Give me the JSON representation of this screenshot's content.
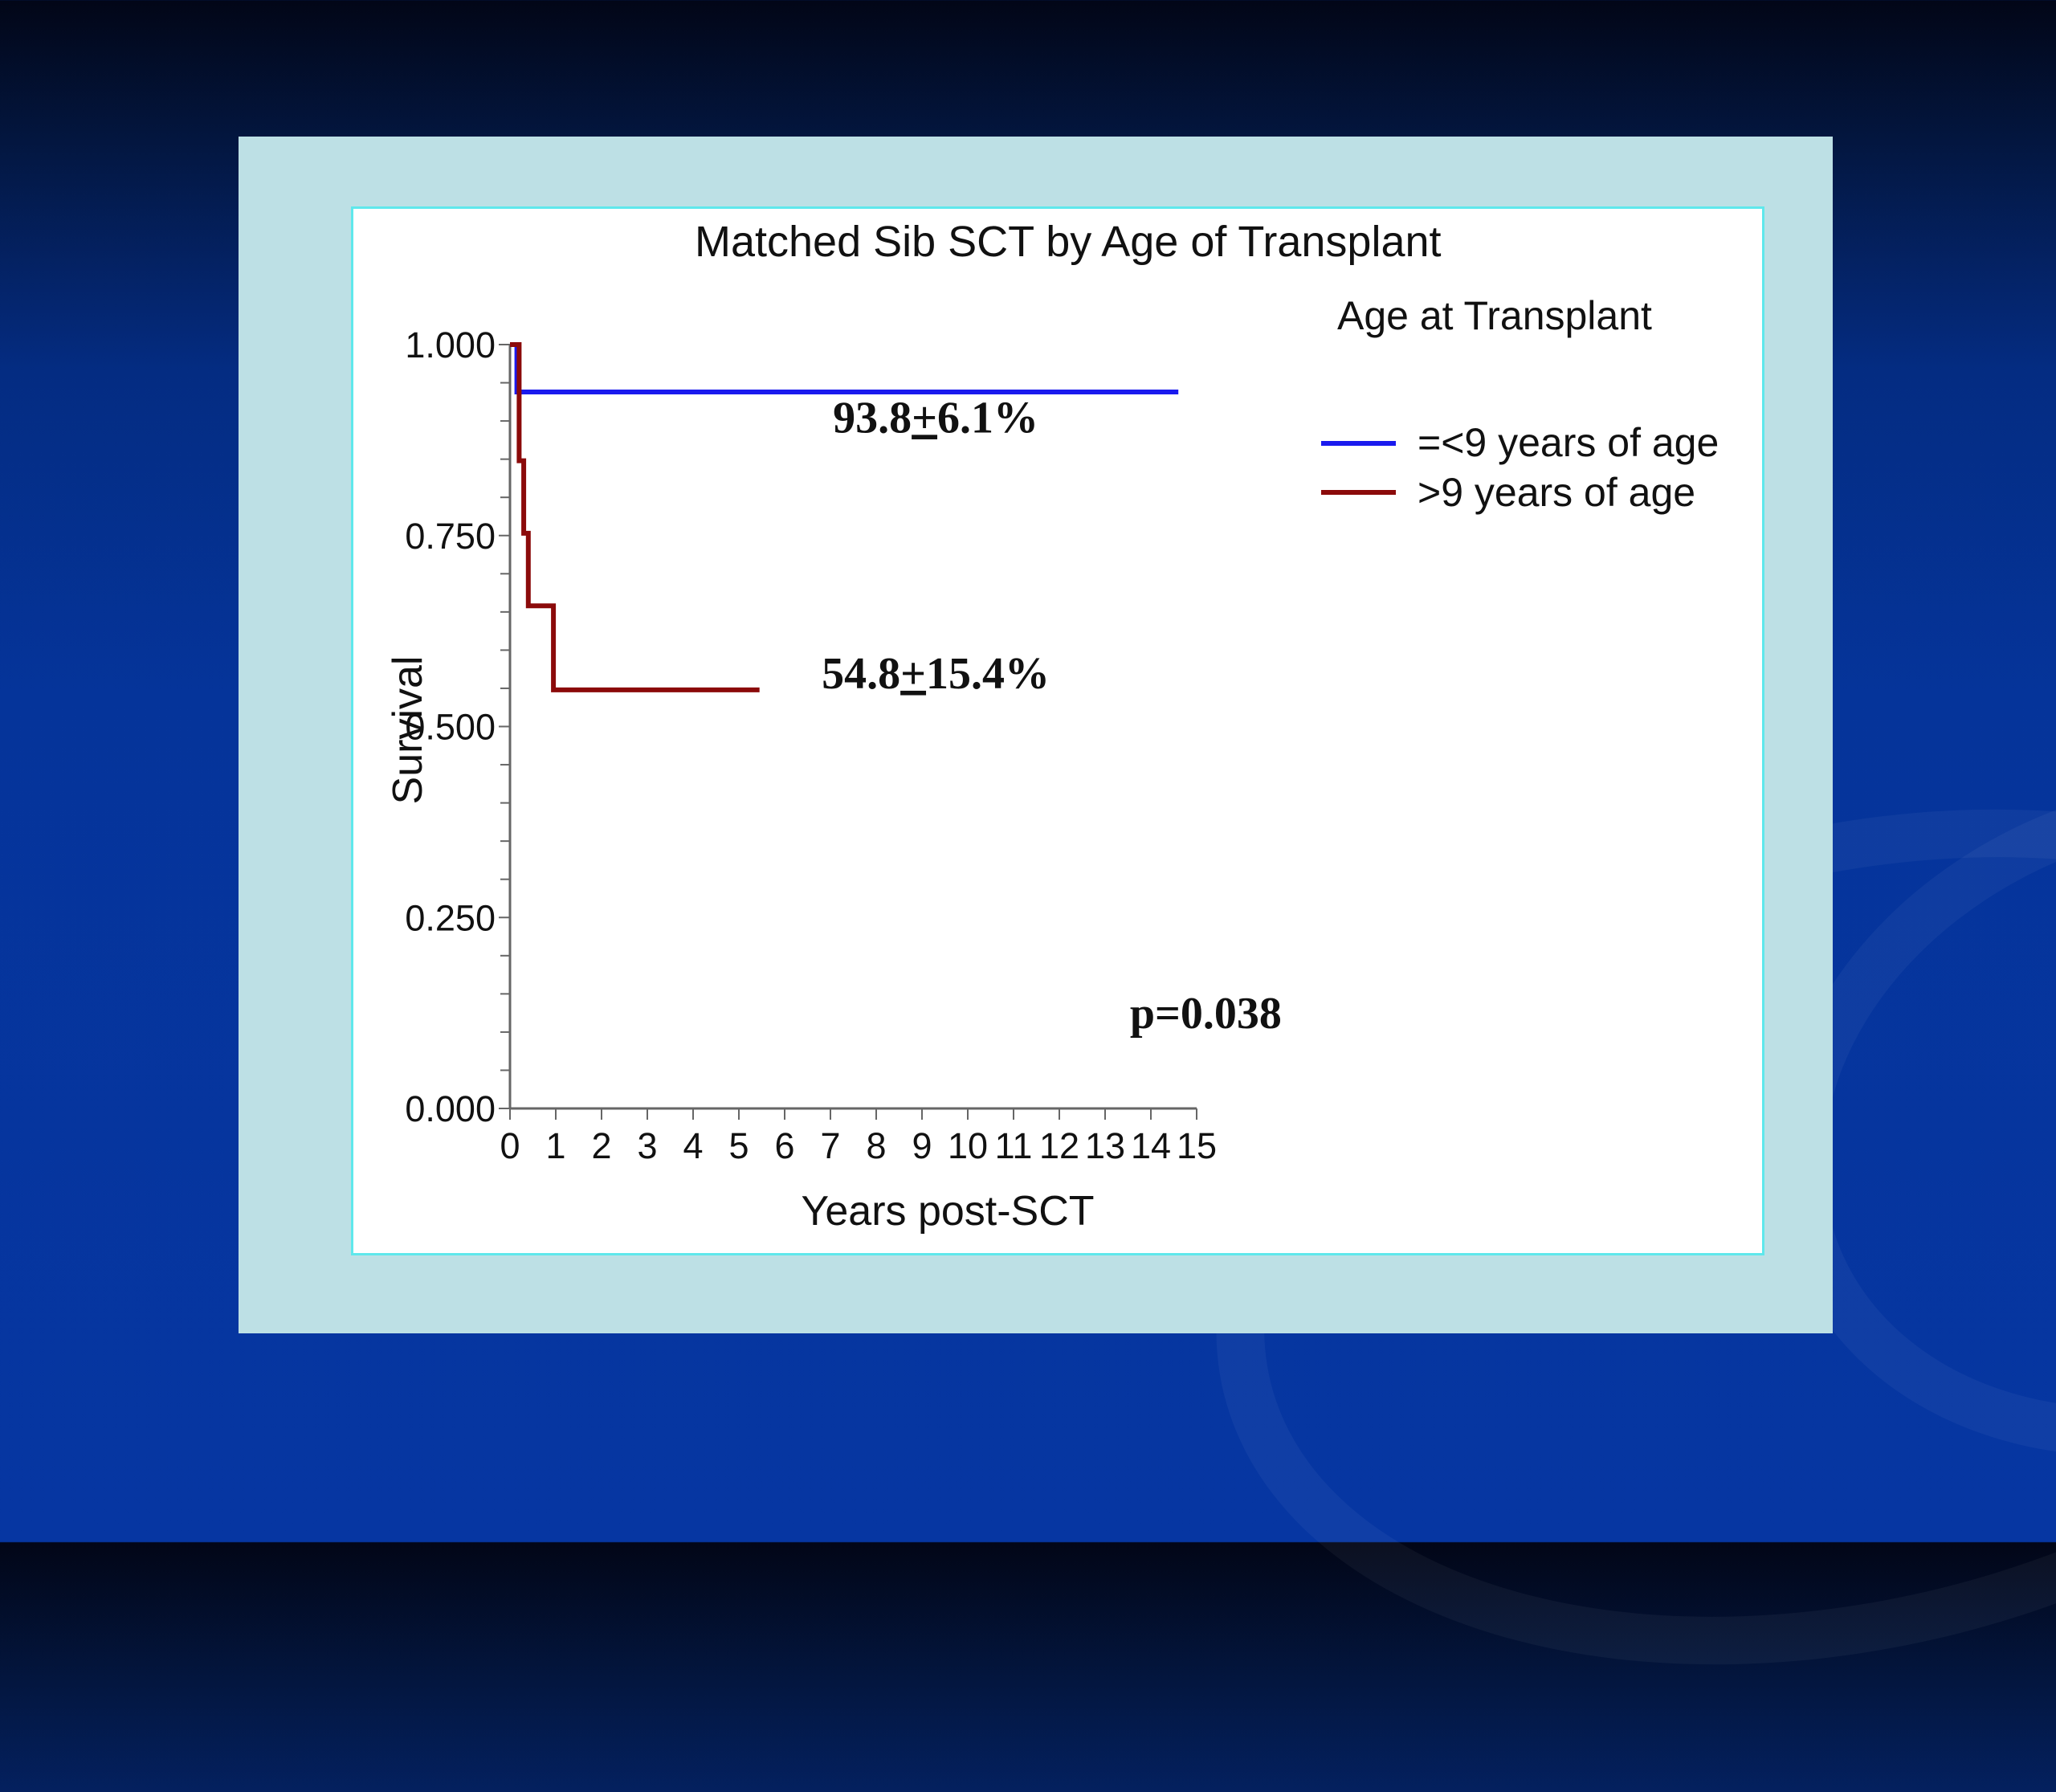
{
  "colors": {
    "background": "#0636a2",
    "frame": "#bde0e5",
    "panel_border": "#5fe8ec"
  },
  "chart_data": {
    "type": "line",
    "title": "Matched Sib SCT by Age of Transplant",
    "xlabel": "Years post-SCT",
    "ylabel": "Survival",
    "xlim": [
      0,
      15
    ],
    "ylim": [
      0,
      1
    ],
    "xticks": [
      "0",
      "1",
      "2",
      "3",
      "4",
      "5",
      "6",
      "7",
      "8",
      "9",
      "10",
      "11",
      "12",
      "13",
      "14",
      "15"
    ],
    "yticks": [
      "0.000",
      "0.250",
      "0.500",
      "0.750",
      "1.000"
    ],
    "grid": false,
    "step": true,
    "legend": {
      "title": "Age at Transplant",
      "position": "top-right"
    },
    "series": [
      {
        "name": "=<9 years of age",
        "color": "#1a1aee",
        "points": [
          [
            0,
            1.0
          ],
          [
            0.15,
            1.0
          ],
          [
            0.15,
            0.938
          ],
          [
            14.6,
            0.938
          ]
        ]
      },
      {
        "name": ">9 years of age",
        "color": "#8b0a0a",
        "points": [
          [
            0,
            1.0
          ],
          [
            0.2,
            1.0
          ],
          [
            0.2,
            0.848
          ],
          [
            0.3,
            0.848
          ],
          [
            0.3,
            0.753
          ],
          [
            0.4,
            0.753
          ],
          [
            0.4,
            0.658
          ],
          [
            0.95,
            0.658
          ],
          [
            0.95,
            0.548
          ],
          [
            5.45,
            0.548
          ]
        ]
      }
    ],
    "annotations": [
      {
        "text": "93.8",
        "pm": "+",
        "rest": "6.1%",
        "x": 9.3,
        "y": 0.885
      },
      {
        "text": "54.8",
        "pm": "+",
        "rest": "15.4%",
        "x": 9.3,
        "y": 0.55
      },
      {
        "text": "p=0.038",
        "x": 15.2,
        "y": 0.105
      }
    ]
  }
}
